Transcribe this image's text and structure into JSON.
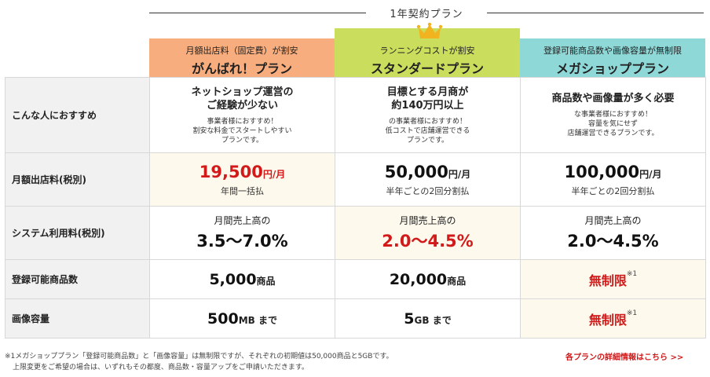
{
  "contract_label": "1年契約プラン",
  "plans": {
    "ganbare": {
      "sub": "月額出店料（固定費）が割安",
      "name": "がんばれ！プラン",
      "color": "#f7ad7d"
    },
    "standard": {
      "sub": "ランニングコストが割安",
      "name": "スタンダードプラン",
      "color": "#cbdd5c"
    },
    "mega": {
      "sub": "登録可能商品数や画像容量が無制限",
      "name": "メガショッププラン",
      "color": "#8fd8d8"
    }
  },
  "rows": {
    "recommend": {
      "label": "こんな人におすすめ",
      "ganbare": {
        "title1": "ネットショップ運営の",
        "title2": "ご経験が少ない",
        "d1": "事業者様におすすめ！",
        "d2": "割安な料金でスタートしやすい",
        "d3": "プランです。"
      },
      "standard": {
        "title1": "目標とする月商が",
        "title2": "約140万円以上",
        "d1": "の事業者様におすすめ！",
        "d2": "低コストで店舗運営できる",
        "d3": "プランです。"
      },
      "mega": {
        "title1": "商品数や画像量が多く必要",
        "d1": "な事業者様におすすめ！",
        "d2": "容量を気にせず",
        "d3": "店舗運営できるプランです。"
      }
    },
    "monthly_fee": {
      "label": "月額出店料(税別)",
      "ganbare": {
        "value": "19,500",
        "unit": "円/月",
        "note": "年間一括払"
      },
      "standard": {
        "value": "50,000",
        "unit": "円/月",
        "note": "半年ごとの2回分割払"
      },
      "mega": {
        "value": "100,000",
        "unit": "円/月",
        "note": "半年ごとの2回分割払"
      }
    },
    "system_fee": {
      "label": "システム利用料(税別)",
      "caption": "月間売上高の",
      "ganbare": "3.5〜7.0%",
      "standard": "2.0〜4.5%",
      "mega": "2.0〜4.5%"
    },
    "products": {
      "label": "登録可能商品数",
      "ganbare": {
        "value": "5,000",
        "unit": "商品"
      },
      "standard": {
        "value": "20,000",
        "unit": "商品"
      },
      "mega": {
        "value": "無制限",
        "mark": "※1"
      }
    },
    "images": {
      "label": "画像容量",
      "ganbare": {
        "value": "500",
        "unit": "MB まで"
      },
      "standard": {
        "value": "5",
        "unit": "GB まで"
      },
      "mega": {
        "value": "無制限",
        "mark": "※1"
      }
    }
  },
  "footnote": {
    "line1": "※1メガショッププラン「登録可能商品数」と「画像容量」は無制限ですが、それぞれの初期値は50,000商品と5GBです。",
    "line2": "上限変更をご希望の場合は、いずれもその都度、商品数・容量アップをご申請いただきます。"
  },
  "detail_link": "各プランの詳細情報はこちら >>",
  "colors": {
    "accent_red": "#d21a1a",
    "highlight_cell": "#fdf9ec",
    "crown": "#f2b320"
  }
}
